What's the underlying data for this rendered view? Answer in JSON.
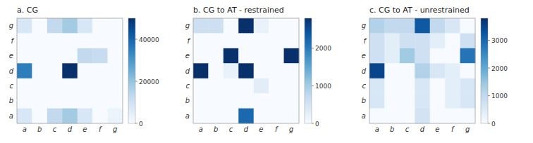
{
  "chart_data": [
    {
      "type": "heatmap",
      "title": "a. CG",
      "x_categories": [
        "a",
        "b",
        "c",
        "d",
        "e",
        "f",
        "g"
      ],
      "y_categories": [
        "g",
        "f",
        "e",
        "d",
        "c",
        "b",
        "a"
      ],
      "values": [
        [
          8000,
          0,
          13000,
          18000,
          8000,
          0,
          0
        ],
        [
          0,
          0,
          0,
          0,
          0,
          0,
          0
        ],
        [
          0,
          0,
          0,
          0,
          13000,
          12000,
          0
        ],
        [
          35000,
          0,
          0,
          50000,
          0,
          0,
          0
        ],
        [
          0,
          0,
          0,
          0,
          0,
          0,
          0
        ],
        [
          0,
          0,
          0,
          0,
          0,
          0,
          0
        ],
        [
          8000,
          0,
          13000,
          18000,
          8000,
          0,
          3000
        ]
      ],
      "color_range": [
        0,
        50000
      ],
      "color_ticks": [
        0,
        20000,
        40000
      ]
    },
    {
      "type": "heatmap",
      "title": "b. CG to AT - restrained",
      "x_categories": [
        "a",
        "b",
        "c",
        "d",
        "e",
        "f",
        "g"
      ],
      "y_categories": [
        "g",
        "f",
        "e",
        "d",
        "c",
        "b",
        "a"
      ],
      "values": [
        [
          600,
          600,
          0,
          2800,
          200,
          0,
          0
        ],
        [
          0,
          0,
          0,
          0,
          0,
          0,
          0
        ],
        [
          0,
          0,
          2800,
          0,
          0,
          0,
          2800
        ],
        [
          2800,
          0,
          200,
          2800,
          0,
          0,
          0
        ],
        [
          0,
          0,
          0,
          0,
          300,
          0,
          0
        ],
        [
          0,
          0,
          0,
          0,
          0,
          0,
          0
        ],
        [
          0,
          0,
          0,
          2200,
          0,
          0,
          0
        ]
      ],
      "color_range": [
        0,
        2800
      ],
      "color_ticks": [
        0,
        1000,
        2000
      ]
    },
    {
      "type": "heatmap",
      "title": "c. CG to AT - unrestrained",
      "x_categories": [
        "a",
        "b",
        "c",
        "d",
        "e",
        "f",
        "g"
      ],
      "y_categories": [
        "g",
        "f",
        "e",
        "d",
        "c",
        "b",
        "a"
      ],
      "values": [
        [
          1200,
          1000,
          1000,
          3200,
          1000,
          600,
          0
        ],
        [
          800,
          400,
          800,
          800,
          400,
          0,
          800
        ],
        [
          800,
          400,
          1400,
          800,
          0,
          0,
          2800
        ],
        [
          3500,
          0,
          0,
          1200,
          600,
          400,
          0
        ],
        [
          600,
          0,
          0,
          600,
          0,
          400,
          600
        ],
        [
          600,
          0,
          0,
          600,
          0,
          400,
          600
        ],
        [
          0,
          0,
          0,
          700,
          0,
          0,
          0
        ]
      ],
      "color_range": [
        0,
        3800
      ],
      "color_ticks": [
        0,
        1000,
        2000,
        3000
      ]
    }
  ]
}
